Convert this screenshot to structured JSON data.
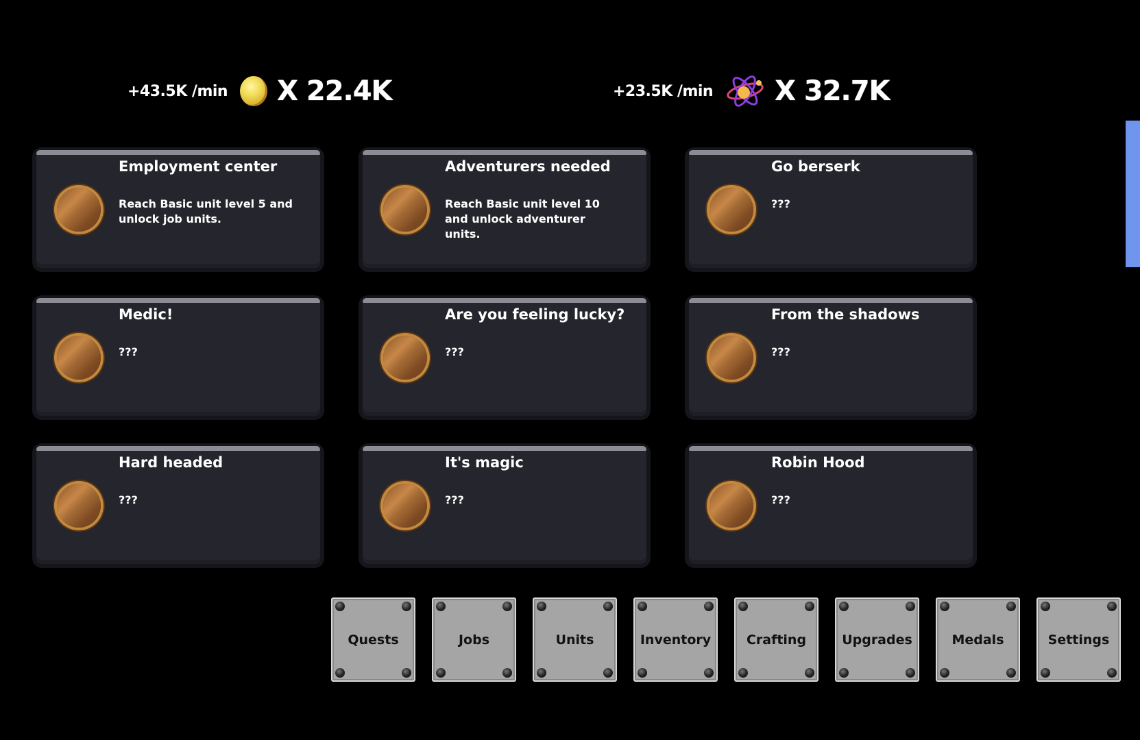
{
  "resources": [
    {
      "rate": "+43.5K /min",
      "icon": "gold-coin-icon",
      "amount": "X 22.4K"
    },
    {
      "rate": "+23.5K /min",
      "icon": "atom-icon",
      "amount": "X 32.7K"
    }
  ],
  "medals": [
    {
      "title": "Employment center",
      "desc": "Reach Basic unit level 5 and unlock job units."
    },
    {
      "title": "Adventurers needed",
      "desc": "Reach Basic unit level 10 and unlock adventurer units."
    },
    {
      "title": "Go berserk",
      "desc": "???"
    },
    {
      "title": "Medic!",
      "desc": "???"
    },
    {
      "title": "Are you feeling lucky?",
      "desc": "???"
    },
    {
      "title": "From the shadows",
      "desc": "???"
    },
    {
      "title": "Hard headed",
      "desc": "???"
    },
    {
      "title": "It's magic",
      "desc": "???"
    },
    {
      "title": "Robin Hood",
      "desc": "???"
    }
  ],
  "nav": [
    "Quests",
    "Jobs",
    "Units",
    "Inventory",
    "Crafting",
    "Upgrades",
    "Medals",
    "Settings"
  ],
  "colors": {
    "scrollbar": "#6f95ef",
    "card": "#25252d",
    "button": "#a5a5a5"
  }
}
